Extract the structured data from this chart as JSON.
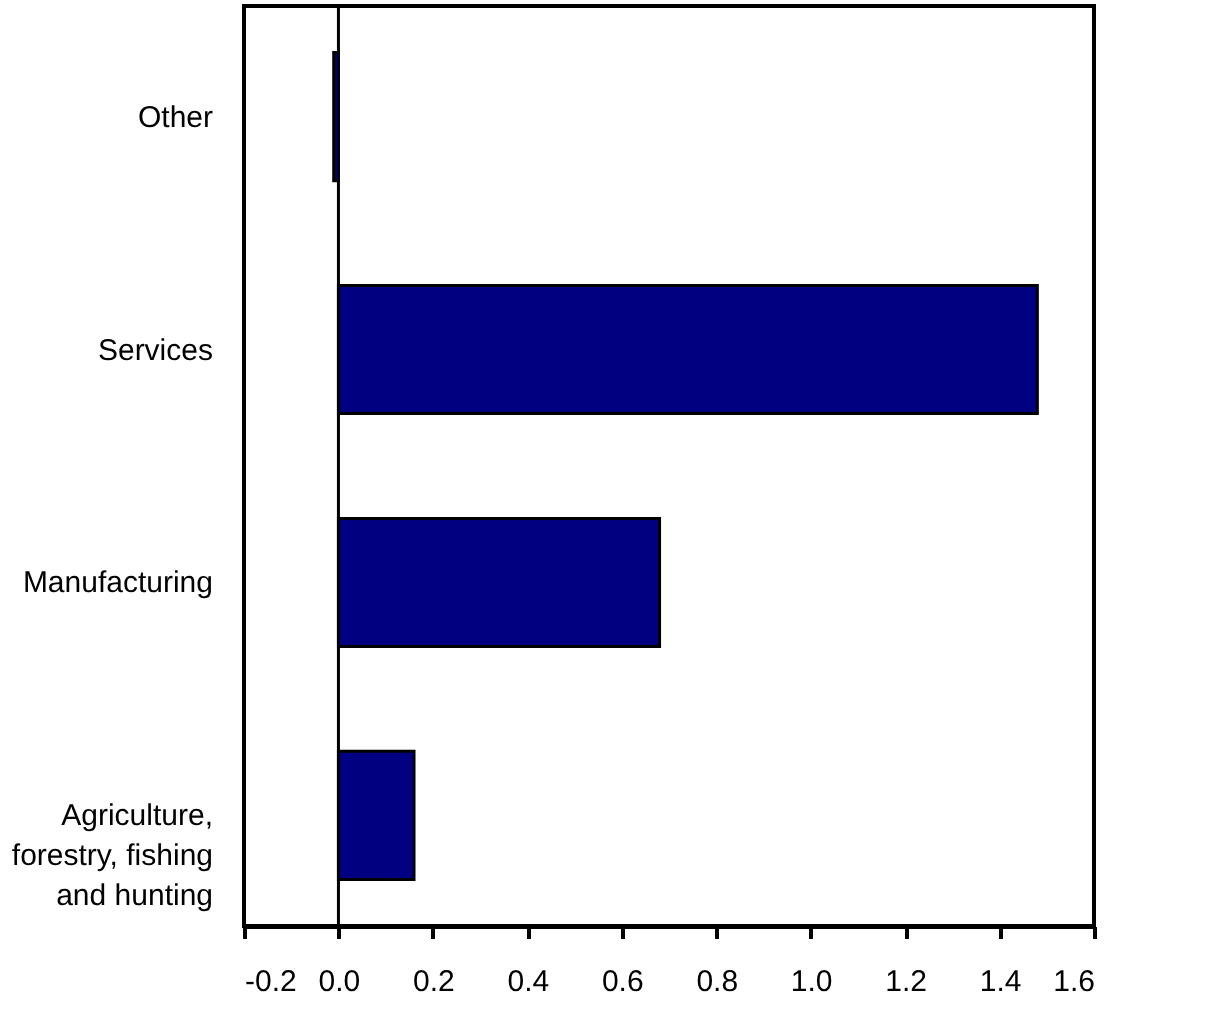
{
  "chart_data": {
    "type": "bar",
    "orientation": "horizontal",
    "categories": [
      "Other",
      "Services",
      "Manufacturing",
      "Agriculture,\nforestry, fishing\nand hunting"
    ],
    "values": [
      -0.01,
      1.48,
      0.68,
      0.16
    ],
    "color": "#000080",
    "xlim": [
      -0.2,
      1.6
    ],
    "xticks": [
      -0.2,
      {
        "value": 0,
        "label": "0.0"
      },
      0.2,
      0.4,
      0.6,
      0.8,
      {
        "value": 1,
        "label": "1.0"
      },
      1.2,
      1.4,
      1.6
    ],
    "ref_lines": [
      {
        "axis": "x",
        "value": 0,
        "color": "#000000"
      }
    ],
    "grid": false
  }
}
